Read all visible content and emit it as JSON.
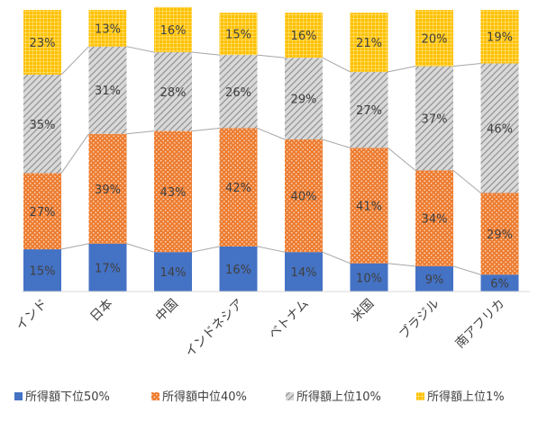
{
  "chart_data": {
    "type": "bar",
    "stacked": "percent",
    "categories": [
      "インド",
      "日本",
      "中国",
      "インドネシア",
      "ベトナム",
      "米国",
      "ブラジル",
      "南アフリカ"
    ],
    "series": [
      {
        "name": "所得額下位50%",
        "values": [
          15,
          17,
          14,
          16,
          14,
          10,
          9,
          6
        ],
        "color": "#4472C4",
        "pattern": "solid"
      },
      {
        "name": "所得額中位40%",
        "values": [
          27,
          39,
          43,
          42,
          40,
          41,
          34,
          29
        ],
        "color": "#ED7D31",
        "pattern": "dotted"
      },
      {
        "name": "所得額上位10%",
        "values": [
          35,
          31,
          28,
          26,
          29,
          27,
          37,
          46
        ],
        "color": "#A5A5A5",
        "pattern": "diagonal-hatch"
      },
      {
        "name": "所得額上位1%",
        "values": [
          23,
          13,
          16,
          15,
          16,
          21,
          20,
          19
        ],
        "color": "#FFC000",
        "pattern": "grid"
      }
    ],
    "value_suffix": "%",
    "ylim": [
      0,
      100
    ],
    "series_lines": true,
    "grid": false,
    "legend": "bottom"
  }
}
